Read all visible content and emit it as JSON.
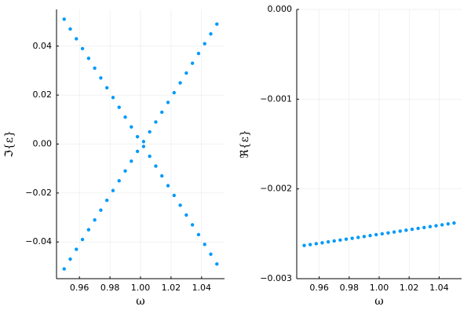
{
  "chart_data": [
    {
      "type": "scatter",
      "xlabel": "ω",
      "ylabel": "ℑ{ε}",
      "x": [
        0.95,
        0.954,
        0.958,
        0.962,
        0.966,
        0.97,
        0.974,
        0.978,
        0.982,
        0.986,
        0.99,
        0.994,
        0.998,
        1.002,
        1.006,
        1.01,
        1.014,
        1.018,
        1.022,
        1.026,
        1.03,
        1.034,
        1.038,
        1.042,
        1.046,
        1.05
      ],
      "series": [
        {
          "color": "#009afa",
          "values": [
            0.051,
            0.047,
            0.043,
            0.039,
            0.035,
            0.031,
            0.027,
            0.023,
            0.019,
            0.015,
            0.011,
            0.007,
            0.003,
            -0.001,
            -0.005,
            -0.009,
            -0.013,
            -0.017,
            -0.021,
            -0.025,
            -0.029,
            -0.033,
            -0.037,
            -0.041,
            -0.045,
            -0.049
          ]
        },
        {
          "color": "#009afa",
          "values": [
            -0.051,
            -0.047,
            -0.043,
            -0.039,
            -0.035,
            -0.031,
            -0.027,
            -0.023,
            -0.019,
            -0.015,
            -0.011,
            -0.007,
            -0.003,
            0.001,
            0.005,
            0.009,
            0.013,
            0.017,
            0.021,
            0.025,
            0.029,
            0.033,
            0.037,
            0.041,
            0.045,
            0.049
          ]
        }
      ],
      "xlim": [
        0.945,
        1.055
      ],
      "ylim": [
        -0.055,
        0.055
      ],
      "xticks": [
        0.96,
        0.98,
        {
          "value": 1,
          "label": "1.00"
        },
        1.02,
        1.04
      ],
      "yticks": [
        {
          "value": -0.04,
          "label": "−0.04"
        },
        {
          "value": -0.02,
          "label": "−0.02"
        },
        {
          "value": 0,
          "label": "0.00"
        },
        0.02,
        0.04
      ],
      "grid": true
    },
    {
      "type": "scatter",
      "xlabel": "ω",
      "ylabel": "ℜ{ε}",
      "x": [
        0.95,
        0.954,
        0.958,
        0.962,
        0.966,
        0.97,
        0.974,
        0.978,
        0.982,
        0.986,
        0.99,
        0.994,
        0.998,
        1.002,
        1.006,
        1.01,
        1.014,
        1.018,
        1.022,
        1.026,
        1.03,
        1.034,
        1.038,
        1.042,
        1.046,
        1.05
      ],
      "series": [
        {
          "color": "#009afa",
          "values": [
            -0.00263,
            -0.00262,
            -0.00261,
            -0.0026,
            -0.00259,
            -0.00258,
            -0.00257,
            -0.00256,
            -0.00255,
            -0.00254,
            -0.00253,
            -0.00252,
            -0.00251,
            -0.0025,
            -0.00249,
            -0.00248,
            -0.00247,
            -0.00246,
            -0.00245,
            -0.00244,
            -0.00243,
            -0.00242,
            -0.00241,
            -0.0024,
            -0.00239,
            -0.00238
          ]
        }
      ],
      "xlim": [
        0.945,
        1.055
      ],
      "ylim": [
        -0.003,
        0
      ],
      "xticks": [
        0.96,
        0.98,
        {
          "value": 1,
          "label": "1.00"
        },
        1.02,
        1.04
      ],
      "yticks": [
        {
          "value": -0.003,
          "label": "−0.003"
        },
        {
          "value": -0.002,
          "label": "−0.002"
        },
        {
          "value": -0.001,
          "label": "−0.001"
        },
        {
          "value": 0,
          "label": "0.000"
        }
      ],
      "grid": true
    }
  ]
}
